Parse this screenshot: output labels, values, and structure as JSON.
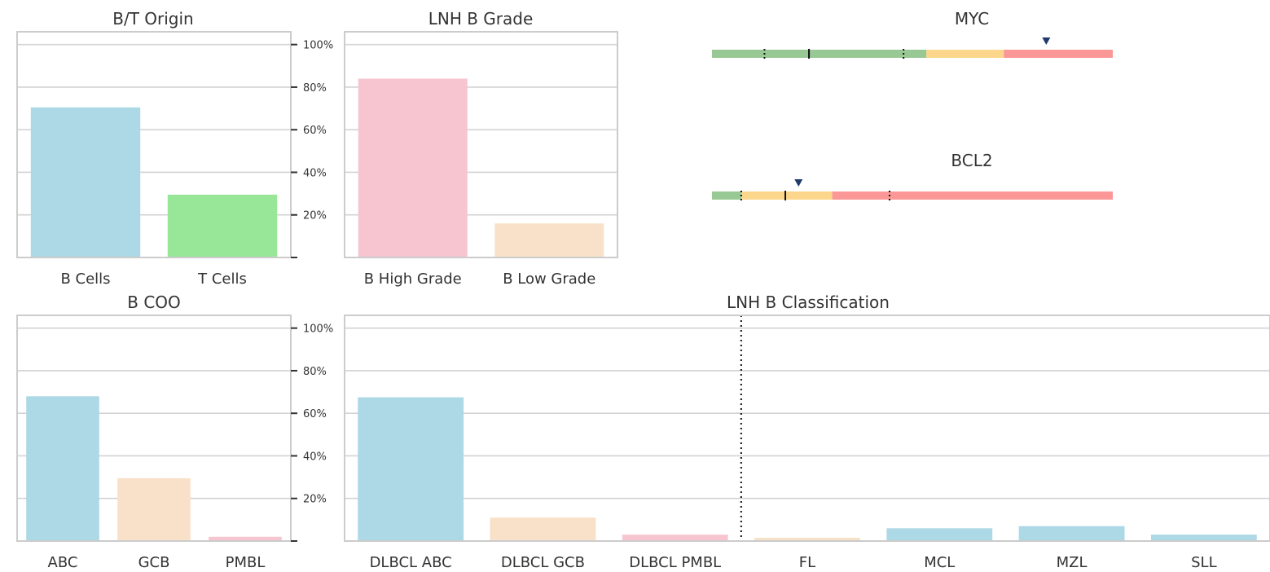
{
  "chart_data": [
    {
      "id": "bt",
      "type": "bar",
      "title": "B/T Origin",
      "categories": [
        "B Cells",
        "T Cells"
      ],
      "values": [
        70.5,
        29.5
      ],
      "colors": [
        "#add8e6",
        "#98e698"
      ],
      "ylim": [
        0,
        106
      ],
      "yticks": [
        20,
        40,
        60,
        80,
        100
      ],
      "ytick_labels": [
        "20%",
        "40%",
        "60%",
        "80%",
        "100%"
      ],
      "grid": true
    },
    {
      "id": "grade",
      "type": "bar",
      "title": "LNH B Grade",
      "categories": [
        "B High Grade",
        "B Low Grade"
      ],
      "values": [
        84,
        16
      ],
      "colors": [
        "#f7c5cf",
        "#f8e1c8"
      ],
      "ylim": [
        0,
        106
      ],
      "yticks": [
        20,
        40,
        60,
        80,
        100
      ],
      "grid": true
    },
    {
      "id": "coo",
      "type": "bar",
      "title": "B COO",
      "categories": [
        "ABC",
        "GCB",
        "PMBL"
      ],
      "values": [
        68,
        29.5,
        2
      ],
      "colors": [
        "#add8e6",
        "#f8e1c8",
        "#f7c5cf"
      ],
      "ylim": [
        0,
        106
      ],
      "yticks": [
        20,
        40,
        60,
        80,
        100
      ],
      "ytick_labels": [
        "20%",
        "40%",
        "60%",
        "80%",
        "100%"
      ],
      "grid": true
    },
    {
      "id": "class",
      "type": "bar",
      "title": "LNH B Classification",
      "categories": [
        "DLBCL ABC",
        "DLBCL GCB",
        "DLBCL PMBL",
        "FL",
        "MCL",
        "MZL",
        "SLL"
      ],
      "values": [
        67.5,
        11,
        3,
        1.5,
        6,
        7,
        3
      ],
      "colors": [
        "#add8e6",
        "#f8e1c8",
        "#f7c5cf",
        "#f8e1c8",
        "#add8e6",
        "#add8e6",
        "#add8e6"
      ],
      "ylim": [
        0,
        106
      ],
      "yticks": [
        20,
        40,
        60,
        80,
        100
      ],
      "divider_after_category": 3,
      "grid": true
    }
  ],
  "gene_bars": [
    {
      "title": "MYC",
      "zones": [
        {
          "from": 0,
          "to": 0.535,
          "color": "#98c893"
        },
        {
          "from": 0.535,
          "to": 0.728,
          "color": "#fcd68a"
        },
        {
          "from": 0.728,
          "to": 1,
          "color": "#fb9797"
        }
      ],
      "ticks": [
        {
          "at": 0.131,
          "style": "dotted"
        },
        {
          "at": 0.242,
          "style": "solid"
        },
        {
          "at": 0.478,
          "style": "dotted"
        }
      ],
      "marker_at": 0.834,
      "marker_color": "#1f3a6b"
    },
    {
      "title": "BCL2",
      "zones": [
        {
          "from": 0,
          "to": 0.073,
          "color": "#98c893"
        },
        {
          "from": 0.073,
          "to": 0.3,
          "color": "#fcd68a"
        },
        {
          "from": 0.3,
          "to": 1,
          "color": "#fb9797"
        }
      ],
      "ticks": [
        {
          "at": 0.073,
          "style": "dotted"
        },
        {
          "at": 0.183,
          "style": "solid"
        },
        {
          "at": 0.443,
          "style": "dotted"
        }
      ],
      "marker_at": 0.216,
      "marker_color": "#1f3a6b"
    }
  ]
}
